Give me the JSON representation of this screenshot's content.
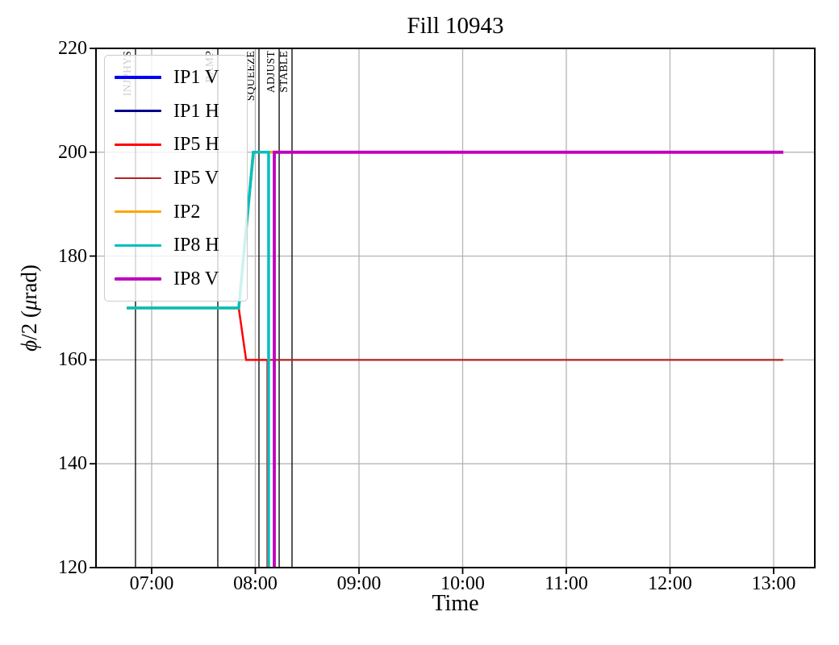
{
  "chart_data": {
    "type": "line",
    "title": "Fill 10943",
    "xlabel": "Time",
    "ylabel": "phi/2 (microrad)",
    "ylabel_parts": {
      "phi": "ϕ",
      "mid": "/2 (",
      "mu": "μ",
      "end": "rad)"
    },
    "ylim": [
      120,
      220
    ],
    "y_ticks": [
      120,
      140,
      160,
      180,
      200,
      220
    ],
    "x_ticks": [
      "07:00",
      "08:00",
      "09:00",
      "10:00",
      "11:00",
      "12:00",
      "13:00"
    ],
    "x_range_hours": [
      6.463,
      13.397
    ],
    "grid": true,
    "grid_color": "#b4b4b4",
    "legend_position": "upper-left-inside",
    "series": [
      {
        "name": "IP1 V",
        "color": "#0000ff",
        "width": 3.5,
        "visible_in_plot": false,
        "points": []
      },
      {
        "name": "IP1 H",
        "color": "#00008b",
        "width": 2.5,
        "visible_in_plot": false,
        "points": []
      },
      {
        "name": "IP5 H",
        "color": "#ff0000",
        "width": 2.5,
        "visible_in_plot": true,
        "points": [
          [
            6.759,
            170
          ],
          [
            7.84,
            170
          ],
          [
            7.911,
            160
          ],
          [
            8.117,
            160
          ],
          [
            8.117,
            112
          ]
        ]
      },
      {
        "name": "IP5 V",
        "color": "#b22222",
        "width": 2.2,
        "visible_in_plot": true,
        "points": [
          [
            8.128,
            112
          ],
          [
            8.128,
            160
          ],
          [
            13.093,
            160
          ]
        ]
      },
      {
        "name": "IP2",
        "color": "#ffa500",
        "width": 3.5,
        "visible_in_plot": true,
        "points": [
          [
            6.759,
            170
          ],
          [
            7.84,
            170
          ],
          [
            7.981,
            200
          ],
          [
            13.093,
            200
          ]
        ]
      },
      {
        "name": "IP8 H",
        "color": "#00bfbf",
        "width": 3.5,
        "visible_in_plot": true,
        "points": [
          [
            6.759,
            170
          ],
          [
            7.84,
            170
          ],
          [
            7.981,
            200
          ],
          [
            8.128,
            200
          ],
          [
            8.128,
            112
          ]
        ]
      },
      {
        "name": "IP8 V",
        "color": "#bf00bf",
        "width": 3.8,
        "visible_in_plot": true,
        "points": [
          [
            8.183,
            112
          ],
          [
            8.183,
            200
          ],
          [
            13.093,
            200
          ]
        ]
      }
    ],
    "events": [
      {
        "label": "INJPHYS",
        "time": "06:51",
        "time_hours": 6.844
      },
      {
        "label": "RAMP",
        "time": "07:38",
        "time_hours": 7.638
      },
      {
        "label": "SQUEEZE",
        "time": "08:02",
        "time_hours": 8.035
      },
      {
        "label": "ADJUST",
        "time": "08:14",
        "time_hours": 8.23
      },
      {
        "label": "STABLE",
        "time": "08:21",
        "time_hours": 8.354
      }
    ]
  }
}
